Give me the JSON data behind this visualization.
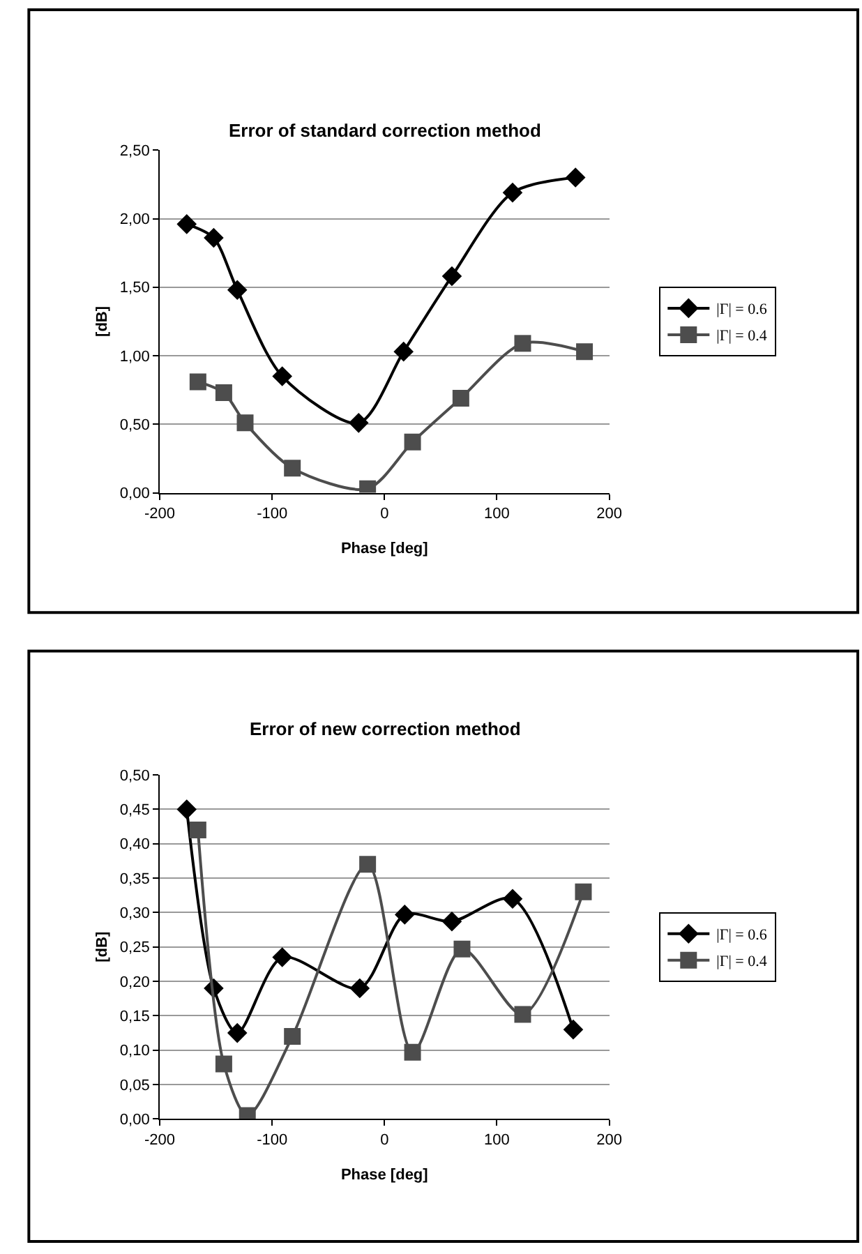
{
  "chart_data": [
    {
      "type": "line",
      "title": "Error of standard correction method",
      "xlabel": "Phase [deg]",
      "ylabel": "[dB]",
      "xlim": [
        -200,
        200
      ],
      "xticks": [
        -200,
        -100,
        0,
        100,
        200
      ],
      "ylim": [
        0,
        2.5
      ],
      "yticks": [
        {
          "value": 0,
          "label": "0,00"
        },
        {
          "value": 0.5,
          "label": "0,50"
        },
        {
          "value": 1,
          "label": "1,00"
        },
        {
          "value": 1.5,
          "label": "1,50"
        },
        {
          "value": 2,
          "label": "2,00"
        },
        {
          "value": 2.5,
          "label": "2,50"
        }
      ],
      "grid": "y",
      "legend": "right",
      "series": [
        {
          "name": "|Γ| = 0.6",
          "color": "#000000",
          "marker": "diamond",
          "x": [
            -176,
            -152,
            -131,
            -91,
            -23,
            17,
            60,
            114,
            170
          ],
          "values": [
            1.96,
            1.86,
            1.48,
            0.85,
            0.51,
            1.03,
            1.58,
            2.19,
            2.3
          ]
        },
        {
          "name": "|Γ| = 0.4",
          "color": "#4d4d4d",
          "marker": "square",
          "x": [
            -166,
            -143,
            -124,
            -82,
            -15,
            25,
            68,
            123,
            178
          ],
          "values": [
            0.81,
            0.73,
            0.51,
            0.18,
            0.03,
            0.37,
            0.69,
            1.09,
            1.03
          ]
        }
      ]
    },
    {
      "type": "line",
      "title": "Error of new correction method",
      "xlabel": "Phase [deg]",
      "ylabel": "[dB]",
      "xlim": [
        -200,
        200
      ],
      "xticks": [
        -200,
        -100,
        0,
        100,
        200
      ],
      "ylim": [
        0,
        0.5
      ],
      "yticks": [
        {
          "value": 0,
          "label": "0,00"
        },
        {
          "value": 0.05,
          "label": "0,05"
        },
        {
          "value": 0.1,
          "label": "0,10"
        },
        {
          "value": 0.15,
          "label": "0,15"
        },
        {
          "value": 0.2,
          "label": "0,20"
        },
        {
          "value": 0.25,
          "label": "0,25"
        },
        {
          "value": 0.3,
          "label": "0,30"
        },
        {
          "value": 0.35,
          "label": "0,35"
        },
        {
          "value": 0.4,
          "label": "0,40"
        },
        {
          "value": 0.45,
          "label": "0,45"
        },
        {
          "value": 0.5,
          "label": "0,50"
        }
      ],
      "grid": "y",
      "legend": "right",
      "series": [
        {
          "name": "|Γ| = 0.6",
          "color": "#000000",
          "marker": "diamond",
          "x": [
            -176,
            -152,
            -131,
            -91,
            -22,
            18,
            60,
            114,
            168
          ],
          "values": [
            0.45,
            0.19,
            0.125,
            0.235,
            0.19,
            0.297,
            0.287,
            0.32,
            0.13
          ]
        },
        {
          "name": "|Γ| = 0.4",
          "color": "#4d4d4d",
          "marker": "square",
          "x": [
            -166,
            -143,
            -122,
            -82,
            -15,
            25,
            69,
            123,
            177
          ],
          "values": [
            0.42,
            0.08,
            0.005,
            0.12,
            0.37,
            0.097,
            0.247,
            0.152,
            0.33
          ]
        }
      ]
    }
  ]
}
